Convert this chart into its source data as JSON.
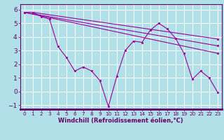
{
  "xlabel": "Windchill (Refroidissement éolien,°C)",
  "bg_color": "#b2e0e8",
  "grid_color": "#ffffff",
  "line_color": "#990099",
  "spine_color": "#660066",
  "tick_color": "#660066",
  "xlim": [
    -0.5,
    23.5
  ],
  "ylim": [
    -1.3,
    6.4
  ],
  "yticks": [
    -1,
    0,
    1,
    2,
    3,
    4,
    5,
    6
  ],
  "xticks": [
    0,
    1,
    2,
    3,
    4,
    5,
    6,
    7,
    8,
    9,
    10,
    11,
    12,
    13,
    14,
    15,
    16,
    17,
    18,
    19,
    20,
    21,
    22,
    23
  ],
  "series1_x": [
    0,
    1,
    2,
    3,
    4,
    5,
    6,
    7,
    8,
    9,
    10,
    11,
    12,
    13,
    14,
    15,
    16,
    17,
    18,
    19,
    20,
    21,
    22,
    23
  ],
  "series1_y": [
    5.8,
    5.8,
    5.5,
    5.3,
    3.3,
    2.5,
    1.5,
    1.8,
    1.5,
    0.8,
    -1.1,
    1.1,
    3.0,
    3.7,
    3.6,
    4.5,
    5.0,
    4.6,
    3.9,
    2.8,
    0.9,
    1.5,
    1.0,
    -0.05
  ],
  "trend1_x": [
    0,
    23
  ],
  "trend1_y": [
    5.8,
    2.8
  ],
  "trend2_x": [
    0,
    23
  ],
  "trend2_y": [
    5.8,
    3.35
  ],
  "trend3_x": [
    1,
    23
  ],
  "trend3_y": [
    5.8,
    3.85
  ],
  "xlabel_fontsize": 6.0,
  "ytick_fontsize": 6.5,
  "xtick_fontsize": 5.2,
  "linewidth": 0.8,
  "markersize": 2.0
}
